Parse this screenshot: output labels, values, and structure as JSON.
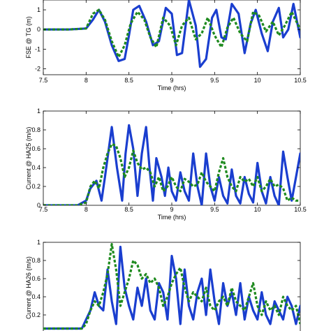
{
  "chart_data": [
    {
      "type": "line",
      "xlabel": "Time (hrs)",
      "ylabel": "FSE @ TG (m)",
      "xlim": [
        7.5,
        10.5
      ],
      "ylim": [
        -2.3,
        1.5
      ],
      "xticks": [
        "7.5",
        "8",
        "8.5",
        "9",
        "9.5",
        "10",
        "10.5"
      ],
      "yticks": [
        "-2",
        "-1",
        "0",
        "1"
      ],
      "series": [
        {
          "color": "#1a3ecf",
          "style": "solid",
          "x": [
            7.5,
            7.8,
            8.0,
            8.08,
            8.15,
            8.22,
            8.3,
            8.38,
            8.45,
            8.5,
            8.55,
            8.62,
            8.7,
            8.78,
            8.85,
            8.93,
            9.0,
            9.06,
            9.12,
            9.2,
            9.28,
            9.33,
            9.4,
            9.47,
            9.52,
            9.58,
            9.63,
            9.7,
            9.78,
            9.85,
            9.92,
            9.98,
            10.05,
            10.12,
            10.18,
            10.25,
            10.3,
            10.36,
            10.42,
            10.5
          ],
          "y": [
            0.0,
            0.0,
            0.05,
            0.5,
            1.0,
            0.4,
            -0.8,
            -1.6,
            -1.5,
            -0.3,
            1.0,
            1.2,
            0.4,
            -0.8,
            -0.6,
            1.1,
            0.8,
            -1.3,
            -1.2,
            1.5,
            0.2,
            -1.9,
            -1.5,
            0.6,
            1.0,
            -0.4,
            -0.5,
            1.3,
            0.8,
            -1.2,
            0.3,
            1.0,
            -0.2,
            -1.1,
            0.4,
            1.1,
            -0.4,
            0.0,
            1.3,
            -0.4
          ]
        },
        {
          "color": "#1e8a1e",
          "style": "dashed",
          "x": [
            7.5,
            7.8,
            8.0,
            8.08,
            8.15,
            8.22,
            8.3,
            8.38,
            8.45,
            8.52,
            8.6,
            8.68,
            8.75,
            8.82,
            8.9,
            8.98,
            9.05,
            9.12,
            9.2,
            9.28,
            9.35,
            9.42,
            9.5,
            9.58,
            9.65,
            9.72,
            9.8,
            9.88,
            9.95,
            10.02,
            10.1,
            10.18,
            10.25,
            10.32,
            10.4,
            10.5
          ],
          "y": [
            0.0,
            0.0,
            0.05,
            0.8,
            1.0,
            0.5,
            -0.6,
            -1.4,
            -0.8,
            0.3,
            0.9,
            0.5,
            -0.4,
            -0.9,
            0.6,
            0.2,
            -0.8,
            0.2,
            0.6,
            -0.5,
            -0.2,
            0.6,
            -0.3,
            -0.9,
            0.1,
            0.6,
            -0.2,
            -0.6,
            0.9,
            0.7,
            -0.1,
            0.4,
            -0.3,
            0.2,
            0.9,
            0.0
          ]
        }
      ]
    },
    {
      "type": "line",
      "xlabel": "Time (hrs)",
      "ylabel": "Current @ HA25 (m/s)",
      "xlim": [
        7.5,
        10.5
      ],
      "ylim": [
        0,
        1
      ],
      "xticks": [
        "7.5",
        "8",
        "8.5",
        "9",
        "9.5",
        "10",
        "10.5"
      ],
      "yticks": [
        "0",
        "0.2",
        "0.4",
        "0.6",
        "0.8",
        "1"
      ],
      "series": [
        {
          "color": "#1a3ecf",
          "style": "solid",
          "x": [
            7.5,
            7.9,
            8.0,
            8.05,
            8.12,
            8.18,
            8.22,
            8.3,
            8.36,
            8.42,
            8.46,
            8.5,
            8.55,
            8.6,
            8.65,
            8.7,
            8.74,
            8.78,
            8.82,
            8.88,
            8.92,
            8.96,
            9.0,
            9.05,
            9.1,
            9.15,
            9.2,
            9.25,
            9.3,
            9.35,
            9.4,
            9.45,
            9.5,
            9.55,
            9.6,
            9.65,
            9.7,
            9.75,
            9.8,
            9.85,
            9.9,
            9.95,
            10.0,
            10.05,
            10.1,
            10.15,
            10.2,
            10.25,
            10.3,
            10.35,
            10.4,
            10.45,
            10.5
          ],
          "y": [
            0.0,
            0.0,
            0.05,
            0.18,
            0.26,
            0.05,
            0.3,
            0.83,
            0.4,
            0.05,
            0.55,
            0.85,
            0.6,
            0.1,
            0.55,
            0.83,
            0.4,
            0.05,
            0.5,
            0.3,
            0.1,
            0.4,
            0.15,
            0.05,
            0.35,
            0.15,
            0.05,
            0.55,
            0.2,
            0.0,
            0.55,
            0.2,
            0.05,
            0.3,
            0.1,
            0.02,
            0.38,
            0.1,
            0.02,
            0.3,
            0.12,
            0.03,
            0.45,
            0.15,
            0.02,
            0.3,
            0.1,
            0.0,
            0.57,
            0.3,
            0.05,
            0.3,
            0.55
          ]
        },
        {
          "color": "#1e8a1e",
          "style": "dashed",
          "x": [
            7.5,
            7.9,
            8.0,
            8.05,
            8.1,
            8.15,
            8.2,
            8.25,
            8.3,
            8.35,
            8.4,
            8.45,
            8.5,
            8.55,
            8.6,
            8.65,
            8.7,
            8.75,
            8.8,
            8.85,
            8.9,
            8.95,
            9.0,
            9.05,
            9.1,
            9.15,
            9.2,
            9.25,
            9.3,
            9.35,
            9.4,
            9.45,
            9.5,
            9.55,
            9.6,
            9.65,
            9.7,
            9.75,
            9.8,
            9.85,
            9.9,
            9.95,
            10.0,
            10.05,
            10.1,
            10.15,
            10.2,
            10.25,
            10.3,
            10.35,
            10.4,
            10.45,
            10.5
          ],
          "y": [
            0.0,
            0.0,
            0.03,
            0.2,
            0.26,
            0.18,
            0.4,
            0.55,
            0.65,
            0.63,
            0.5,
            0.3,
            0.4,
            0.58,
            0.45,
            0.38,
            0.4,
            0.35,
            0.2,
            0.3,
            0.15,
            0.2,
            0.3,
            0.2,
            0.15,
            0.28,
            0.25,
            0.2,
            0.22,
            0.35,
            0.25,
            0.2,
            0.15,
            0.35,
            0.5,
            0.3,
            0.2,
            0.15,
            0.3,
            0.25,
            0.28,
            0.2,
            0.3,
            0.15,
            0.2,
            0.28,
            0.2,
            0.22,
            0.18,
            0.05,
            0.08,
            0.05,
            0.05
          ]
        }
      ]
    },
    {
      "type": "line",
      "xlabel": "",
      "ylabel": "Current @ HA26 (m/s)",
      "xlim": [
        7.5,
        10.5
      ],
      "ylim": [
        0,
        1
      ],
      "yticks": [
        "0.2",
        "0.4",
        "0.6",
        "0.8",
        "1"
      ],
      "series": [
        {
          "color": "#1a3ecf",
          "style": "solid",
          "x": [
            7.5,
            7.95,
            8.0,
            8.05,
            8.1,
            8.15,
            8.2,
            8.25,
            8.3,
            8.35,
            8.4,
            8.45,
            8.5,
            8.55,
            8.6,
            8.65,
            8.7,
            8.75,
            8.8,
            8.85,
            8.9,
            8.95,
            9.0,
            9.05,
            9.1,
            9.15,
            9.2,
            9.25,
            9.3,
            9.35,
            9.4,
            9.45,
            9.5,
            9.55,
            9.6,
            9.65,
            9.7,
            9.75,
            9.8,
            9.85,
            9.9,
            9.95,
            10.0,
            10.05,
            10.1,
            10.15,
            10.2,
            10.25,
            10.3,
            10.35,
            10.4,
            10.45,
            10.5
          ],
          "y": [
            0.05,
            0.05,
            0.15,
            0.25,
            0.45,
            0.3,
            0.25,
            0.7,
            0.35,
            0.1,
            0.95,
            0.5,
            0.3,
            0.15,
            0.5,
            0.3,
            0.6,
            0.25,
            0.15,
            0.55,
            0.45,
            0.15,
            0.85,
            0.6,
            0.1,
            0.7,
            0.3,
            0.15,
            0.45,
            0.6,
            0.2,
            0.7,
            0.35,
            0.1,
            0.55,
            0.3,
            0.45,
            0.2,
            0.55,
            0.15,
            0.4,
            0.25,
            0.15,
            0.45,
            0.2,
            0.1,
            0.35,
            0.25,
            0.15,
            0.4,
            0.3,
            0.1,
            0.3
          ]
        },
        {
          "color": "#1e8a1e",
          "style": "dashed",
          "x": [
            7.5,
            7.95,
            8.0,
            8.05,
            8.1,
            8.15,
            8.2,
            8.25,
            8.3,
            8.35,
            8.4,
            8.45,
            8.5,
            8.55,
            8.6,
            8.65,
            8.7,
            8.75,
            8.8,
            8.85,
            8.9,
            8.95,
            9.0,
            9.05,
            9.1,
            9.15,
            9.2,
            9.25,
            9.3,
            9.35,
            9.4,
            9.45,
            9.5,
            9.55,
            9.6,
            9.65,
            9.7,
            9.75,
            9.8,
            9.85,
            9.9,
            9.95,
            10.0,
            10.05,
            10.1,
            10.15,
            10.2,
            10.25,
            10.3,
            10.35,
            10.4,
            10.45,
            10.5
          ],
          "y": [
            0.05,
            0.05,
            0.1,
            0.25,
            0.35,
            0.3,
            0.45,
            0.65,
            0.98,
            0.7,
            0.3,
            0.45,
            0.6,
            0.8,
            0.75,
            0.6,
            0.65,
            0.55,
            0.6,
            0.5,
            0.3,
            0.4,
            0.55,
            0.65,
            0.72,
            0.5,
            0.35,
            0.45,
            0.4,
            0.35,
            0.5,
            0.3,
            0.25,
            0.35,
            0.4,
            0.3,
            0.5,
            0.35,
            0.3,
            0.25,
            0.4,
            0.55,
            0.3,
            0.2,
            0.35,
            0.25,
            0.3,
            0.2,
            0.4,
            0.3,
            0.25,
            0.3,
            0.1
          ]
        }
      ]
    }
  ]
}
